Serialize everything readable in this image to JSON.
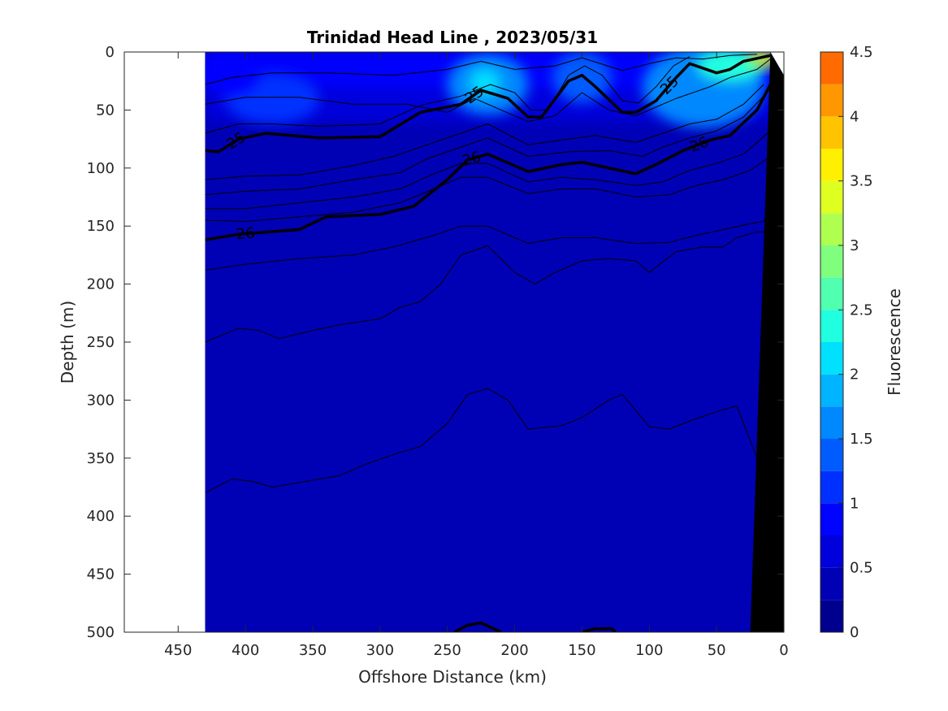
{
  "chart_data": {
    "type": "heatmap",
    "title": "Trinidad Head Line , 2023/05/31",
    "xlabel": "Offshore Distance (km)",
    "ylabel": "Depth (m)",
    "xlim": [
      490,
      0
    ],
    "ylim": [
      0,
      500
    ],
    "x_reversed": true,
    "y_reversed": true,
    "x_ticks": [
      450,
      400,
      350,
      300,
      250,
      200,
      150,
      100,
      50,
      0
    ],
    "y_ticks": [
      0,
      50,
      100,
      150,
      200,
      250,
      300,
      350,
      400,
      450,
      500
    ],
    "data_extent_km": [
      430,
      0
    ],
    "colorbar": {
      "label": "Fluorescence",
      "range": [
        0,
        4.5
      ],
      "ticks": [
        0,
        0.5,
        1,
        1.5,
        2,
        2.5,
        3,
        3.5,
        4,
        4.5
      ],
      "step": 0.25,
      "colors": [
        "#00008f",
        "#0000b5",
        "#0000dc",
        "#0004ff",
        "#0030ff",
        "#005cff",
        "#0088ff",
        "#00b4ff",
        "#00e0ff",
        "#20ffdf",
        "#50ffaf",
        "#80ff7f",
        "#afff50",
        "#dfff20",
        "#ffef00",
        "#ffc300",
        "#ff9700",
        "#ff6b00",
        "#ff3f00",
        "#ff1300",
        "#dd0000",
        "#a80000"
      ]
    },
    "fluorescence_patches": [
      {
        "x": 380,
        "y": 40,
        "value": 1.0,
        "rx": 35,
        "ry": 22
      },
      {
        "x": 410,
        "y": 20,
        "value": 0.8,
        "rx": 20,
        "ry": 16
      },
      {
        "x": 220,
        "y": 28,
        "value": 1.7,
        "rx": 30,
        "ry": 26
      },
      {
        "x": 222,
        "y": 26,
        "value": 2.0,
        "rx": 12,
        "ry": 12
      },
      {
        "x": 150,
        "y": 22,
        "value": 1.3,
        "rx": 22,
        "ry": 22
      },
      {
        "x": 60,
        "y": 30,
        "value": 1.7,
        "rx": 45,
        "ry": 35
      },
      {
        "x": 40,
        "y": 12,
        "value": 2.3,
        "rx": 25,
        "ry": 14
      },
      {
        "x": 15,
        "y": 6,
        "value": 3.3,
        "rx": 12,
        "ry": 7
      }
    ],
    "bathymetry": [
      [
        10,
        0
      ],
      [
        25,
        500
      ],
      [
        0,
        500
      ],
      [
        0,
        0
      ]
    ],
    "density_contours": [
      {
        "level": 25,
        "bold": true,
        "label_x": [
          407,
          230,
          85
        ],
        "points": [
          [
            430,
            85
          ],
          [
            420,
            86
          ],
          [
            405,
            75
          ],
          [
            385,
            70
          ],
          [
            345,
            74
          ],
          [
            300,
            73
          ],
          [
            270,
            52
          ],
          [
            240,
            45
          ],
          [
            225,
            33
          ],
          [
            205,
            40
          ],
          [
            190,
            56
          ],
          [
            180,
            56
          ],
          [
            160,
            25
          ],
          [
            150,
            20
          ],
          [
            140,
            30
          ],
          [
            120,
            52
          ],
          [
            110,
            52
          ],
          [
            95,
            42
          ],
          [
            80,
            22
          ],
          [
            70,
            10
          ],
          [
            50,
            18
          ],
          [
            40,
            15
          ],
          [
            30,
            8
          ],
          [
            10,
            3
          ]
        ]
      },
      {
        "level": 26,
        "bold": true,
        "label_x": [
          400,
          232,
          63
        ],
        "points": [
          [
            430,
            162
          ],
          [
            405,
            157
          ],
          [
            360,
            153
          ],
          [
            340,
            142
          ],
          [
            300,
            140
          ],
          [
            275,
            133
          ],
          [
            250,
            110
          ],
          [
            235,
            93
          ],
          [
            220,
            88
          ],
          [
            190,
            103
          ],
          [
            165,
            97
          ],
          [
            150,
            95
          ],
          [
            110,
            105
          ],
          [
            95,
            97
          ],
          [
            75,
            85
          ],
          [
            55,
            76
          ],
          [
            40,
            72
          ],
          [
            20,
            50
          ],
          [
            10,
            28
          ]
        ]
      },
      {
        "level": 0,
        "bold": false,
        "points": [
          [
            430,
            45
          ],
          [
            400,
            39
          ],
          [
            360,
            39
          ],
          [
            320,
            45
          ],
          [
            280,
            45
          ],
          [
            250,
            52
          ],
          [
            230,
            40
          ],
          [
            190,
            60
          ],
          [
            170,
            55
          ],
          [
            150,
            35
          ],
          [
            130,
            50
          ],
          [
            110,
            55
          ],
          [
            80,
            40
          ],
          [
            55,
            30
          ],
          [
            40,
            22
          ],
          [
            20,
            15
          ],
          [
            10,
            6
          ]
        ]
      },
      {
        "level": 0,
        "bold": false,
        "points": [
          [
            430,
            28
          ],
          [
            410,
            22
          ],
          [
            380,
            18
          ],
          [
            340,
            18
          ],
          [
            290,
            20
          ],
          [
            250,
            15
          ],
          [
            225,
            8
          ],
          [
            200,
            15
          ],
          [
            170,
            12
          ],
          [
            150,
            5
          ],
          [
            120,
            16
          ],
          [
            100,
            10
          ],
          [
            80,
            5
          ],
          [
            60,
            6
          ],
          [
            40,
            3
          ],
          [
            20,
            2
          ]
        ]
      },
      {
        "level": 0,
        "bold": false,
        "points": [
          [
            430,
            70
          ],
          [
            405,
            62
          ],
          [
            380,
            62
          ],
          [
            345,
            64
          ],
          [
            300,
            62
          ],
          [
            270,
            46
          ],
          [
            240,
            38
          ],
          [
            218,
            28
          ],
          [
            200,
            35
          ],
          [
            188,
            50
          ],
          [
            175,
            50
          ],
          [
            160,
            20
          ],
          [
            148,
            12
          ],
          [
            135,
            20
          ],
          [
            120,
            42
          ],
          [
            108,
            44
          ],
          [
            95,
            30
          ],
          [
            82,
            12
          ],
          [
            70,
            4
          ]
        ]
      },
      {
        "level": 0,
        "bold": false,
        "points": [
          [
            430,
            110
          ],
          [
            400,
            107
          ],
          [
            360,
            106
          ],
          [
            320,
            98
          ],
          [
            290,
            90
          ],
          [
            265,
            80
          ],
          [
            240,
            70
          ],
          [
            220,
            62
          ],
          [
            190,
            80
          ],
          [
            160,
            75
          ],
          [
            140,
            72
          ],
          [
            110,
            78
          ],
          [
            90,
            70
          ],
          [
            70,
            62
          ],
          [
            50,
            58
          ],
          [
            30,
            45
          ],
          [
            15,
            28
          ]
        ]
      },
      {
        "level": 0,
        "bold": false,
        "points": [
          [
            430,
            123
          ],
          [
            400,
            120
          ],
          [
            360,
            118
          ],
          [
            320,
            110
          ],
          [
            285,
            104
          ],
          [
            265,
            92
          ],
          [
            240,
            82
          ],
          [
            220,
            74
          ],
          [
            190,
            90
          ],
          [
            160,
            86
          ],
          [
            130,
            85
          ],
          [
            105,
            90
          ],
          [
            90,
            82
          ],
          [
            70,
            74
          ],
          [
            50,
            68
          ],
          [
            30,
            56
          ],
          [
            15,
            38
          ]
        ]
      },
      {
        "level": 0,
        "bold": false,
        "points": [
          [
            430,
            135
          ],
          [
            400,
            135
          ],
          [
            360,
            130
          ],
          [
            320,
            125
          ],
          [
            285,
            118
          ],
          [
            260,
            105
          ],
          [
            240,
            96
          ],
          [
            220,
            96
          ],
          [
            190,
            112
          ],
          [
            165,
            108
          ],
          [
            140,
            110
          ],
          [
            110,
            115
          ],
          [
            90,
            112
          ],
          [
            70,
            102
          ],
          [
            50,
            96
          ],
          [
            30,
            88
          ],
          [
            10,
            68
          ]
        ]
      },
      {
        "level": 0,
        "bold": false,
        "points": [
          [
            430,
            145
          ],
          [
            400,
            146
          ],
          [
            360,
            142
          ],
          [
            320,
            138
          ],
          [
            285,
            130
          ],
          [
            260,
            118
          ],
          [
            240,
            108
          ],
          [
            220,
            108
          ],
          [
            190,
            122
          ],
          [
            165,
            118
          ],
          [
            140,
            118
          ],
          [
            110,
            125
          ],
          [
            85,
            123
          ],
          [
            65,
            115
          ],
          [
            45,
            110
          ],
          [
            25,
            102
          ],
          [
            10,
            90
          ]
        ]
      },
      {
        "level": 0,
        "bold": false,
        "points": [
          [
            430,
            188
          ],
          [
            400,
            183
          ],
          [
            360,
            178
          ],
          [
            320,
            175
          ],
          [
            290,
            168
          ],
          [
            260,
            158
          ],
          [
            240,
            150
          ],
          [
            220,
            150
          ],
          [
            190,
            165
          ],
          [
            165,
            160
          ],
          [
            140,
            160
          ],
          [
            110,
            165
          ],
          [
            85,
            164
          ],
          [
            65,
            158
          ],
          [
            45,
            153
          ],
          [
            25,
            148
          ],
          [
            10,
            145
          ]
        ]
      },
      {
        "level": 0,
        "bold": false,
        "points": [
          [
            430,
            250
          ],
          [
            405,
            238
          ],
          [
            390,
            240
          ],
          [
            375,
            247
          ],
          [
            350,
            240
          ],
          [
            330,
            235
          ],
          [
            300,
            230
          ],
          [
            285,
            220
          ],
          [
            270,
            215
          ],
          [
            255,
            200
          ],
          [
            240,
            175
          ],
          [
            220,
            167
          ],
          [
            200,
            190
          ],
          [
            185,
            200
          ],
          [
            170,
            190
          ],
          [
            150,
            180
          ],
          [
            130,
            178
          ],
          [
            110,
            180
          ],
          [
            100,
            190
          ],
          [
            80,
            172
          ],
          [
            60,
            168
          ],
          [
            45,
            168
          ],
          [
            35,
            160
          ],
          [
            20,
            155
          ],
          [
            10,
            155
          ]
        ]
      },
      {
        "level": 0,
        "bold": false,
        "points": [
          [
            430,
            380
          ],
          [
            410,
            368
          ],
          [
            395,
            370
          ],
          [
            380,
            375
          ],
          [
            355,
            370
          ],
          [
            330,
            365
          ],
          [
            310,
            355
          ],
          [
            285,
            345
          ],
          [
            270,
            340
          ],
          [
            250,
            320
          ],
          [
            235,
            295
          ],
          [
            220,
            290
          ],
          [
            205,
            300
          ],
          [
            190,
            325
          ],
          [
            165,
            322
          ],
          [
            150,
            315
          ],
          [
            130,
            300
          ],
          [
            120,
            295
          ],
          [
            100,
            323
          ],
          [
            85,
            325
          ],
          [
            70,
            318
          ],
          [
            50,
            310
          ],
          [
            35,
            305
          ],
          [
            25,
            335
          ],
          [
            15,
            365
          ]
        ]
      },
      {
        "level": 0,
        "bold": true,
        "points": [
          [
            245,
            500
          ],
          [
            235,
            494
          ],
          [
            225,
            492
          ],
          [
            210,
            500
          ]
        ]
      },
      {
        "level": 0,
        "bold": true,
        "points": [
          [
            150,
            500
          ],
          [
            140,
            497
          ],
          [
            128,
            497
          ],
          [
            125,
            500
          ]
        ]
      }
    ]
  }
}
